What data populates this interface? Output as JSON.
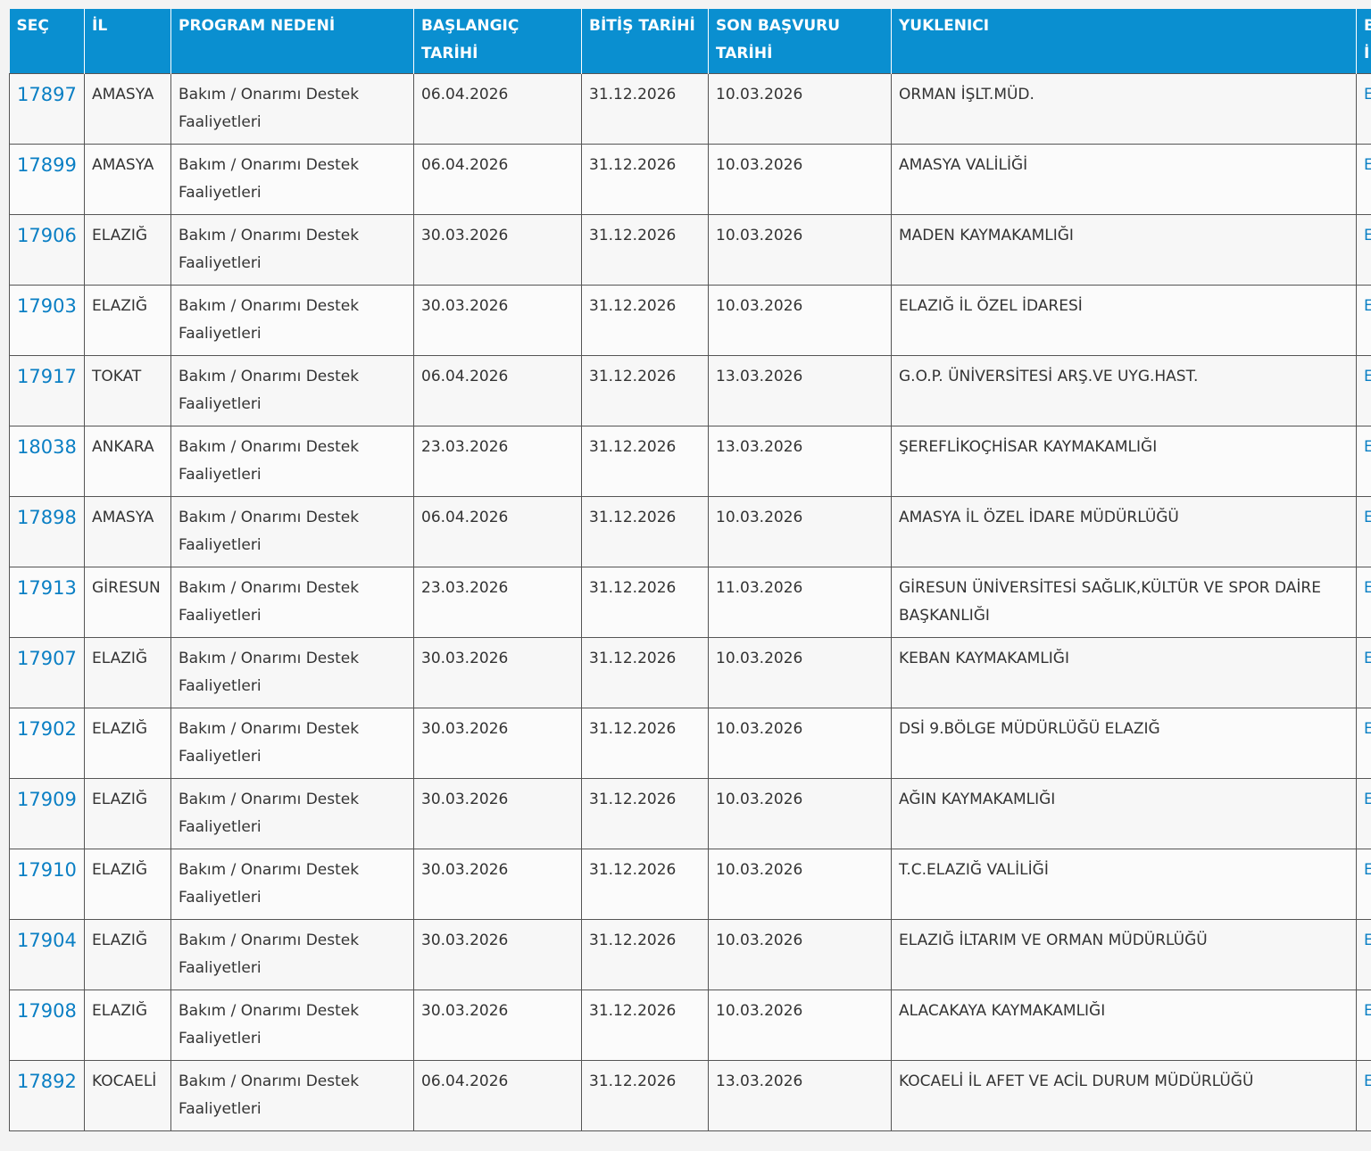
{
  "header": {
    "columns": [
      "SEÇ",
      "İL",
      "PROGRAM NEDENİ",
      "BAŞLANGIÇ TARİHİ",
      "BİTİŞ TARİHİ",
      "SON BAŞVURU TARİHİ",
      "YUKLENICI",
      "B İ"
    ]
  },
  "table": {
    "rows": [
      [
        "17897",
        "AMASYA",
        "Bakım / Onarımı Destek Faaliyetleri",
        "06.04.2026",
        "31.12.2026",
        "10.03.2026",
        "ORMAN İŞLT.MÜD.",
        "E İ"
      ],
      [
        "17899",
        "AMASYA",
        "Bakım / Onarımı Destek Faaliyetleri",
        "06.04.2026",
        "31.12.2026",
        "10.03.2026",
        "AMASYA VALİLİĞİ",
        "E İ"
      ],
      [
        "17906",
        "ELAZIĞ",
        "Bakım / Onarımı Destek Faaliyetleri",
        "30.03.2026",
        "31.12.2026",
        "10.03.2026",
        "MADEN KAYMAKAMLIĞI",
        "E İ"
      ],
      [
        "17903",
        "ELAZIĞ",
        "Bakım / Onarımı Destek Faaliyetleri",
        "30.03.2026",
        "31.12.2026",
        "10.03.2026",
        "ELAZIĞ İL ÖZEL İDARESİ",
        "E İ"
      ],
      [
        "17917",
        "TOKAT",
        "Bakım / Onarımı Destek Faaliyetleri",
        "06.04.2026",
        "31.12.2026",
        "13.03.2026",
        "G.O.P. ÜNİVERSİTESİ ARŞ.VE UYG.HAST.",
        "E İ"
      ],
      [
        "18038",
        "ANKARA",
        "Bakım / Onarımı Destek Faaliyetleri",
        "23.03.2026",
        "31.12.2026",
        "13.03.2026",
        "ŞEREFLİKOÇHİSAR KAYMAKAMLIĞI",
        "E İ"
      ],
      [
        "17898",
        "AMASYA",
        "Bakım / Onarımı Destek Faaliyetleri",
        "06.04.2026",
        "31.12.2026",
        "10.03.2026",
        "AMASYA İL ÖZEL İDARE MÜDÜRLÜĞÜ",
        "E İ"
      ],
      [
        "17913",
        "GİRESUN",
        "Bakım / Onarımı Destek Faaliyetleri",
        "23.03.2026",
        "31.12.2026",
        "11.03.2026",
        "GİRESUN ÜNİVERSİTESİ SAĞLIK,KÜLTÜR VE SPOR DAİRE BAŞKANLIĞI",
        "E İ"
      ],
      [
        "17907",
        "ELAZIĞ",
        "Bakım / Onarımı Destek Faaliyetleri",
        "30.03.2026",
        "31.12.2026",
        "10.03.2026",
        "KEBAN KAYMAKAMLIĞI",
        "E İ"
      ],
      [
        "17902",
        "ELAZIĞ",
        "Bakım / Onarımı Destek Faaliyetleri",
        "30.03.2026",
        "31.12.2026",
        "10.03.2026",
        "DSİ 9.BÖLGE MÜDÜRLÜĞÜ ELAZIĞ",
        "E İ"
      ],
      [
        "17909",
        "ELAZIĞ",
        "Bakım / Onarımı Destek Faaliyetleri",
        "30.03.2026",
        "31.12.2026",
        "10.03.2026",
        "AĞIN KAYMAKAMLIĞI",
        "E İ"
      ],
      [
        "17910",
        "ELAZIĞ",
        "Bakım / Onarımı Destek Faaliyetleri",
        "30.03.2026",
        "31.12.2026",
        "10.03.2026",
        "T.C.ELAZIĞ VALİLİĞİ",
        "E İ"
      ],
      [
        "17904",
        "ELAZIĞ",
        "Bakım / Onarımı Destek Faaliyetleri",
        "30.03.2026",
        "31.12.2026",
        "10.03.2026",
        "ELAZIĞ İLTARIM VE ORMAN MÜDÜRLÜĞÜ",
        "E İ"
      ],
      [
        "17908",
        "ELAZIĞ",
        "Bakım / Onarımı Destek Faaliyetleri",
        "30.03.2026",
        "31.12.2026",
        "10.03.2026",
        "ALACAKAYA KAYMAKAMLIĞI",
        "E İ"
      ],
      [
        "17892",
        "KOCAELİ",
        "Bakım / Onarımı Destek Faaliyetleri",
        "06.04.2026",
        "31.12.2026",
        "13.03.2026",
        "KOCAELİ İL AFET VE ACİL DURUM MÜDÜRLÜĞÜ",
        "E İ"
      ]
    ]
  }
}
